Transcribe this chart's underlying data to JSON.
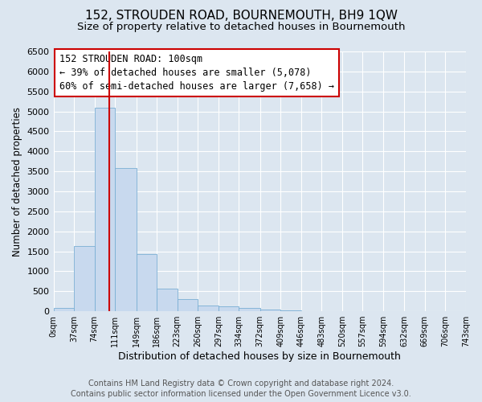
{
  "title": "152, STROUDEN ROAD, BOURNEMOUTH, BH9 1QW",
  "subtitle": "Size of property relative to detached houses in Bournemouth",
  "xlabel": "Distribution of detached houses by size in Bournemouth",
  "ylabel": "Number of detached properties",
  "bin_edges": [
    0,
    37,
    74,
    111,
    149,
    186,
    223,
    260,
    297,
    334,
    372,
    409,
    446,
    483,
    520,
    557,
    594,
    632,
    669,
    706,
    743
  ],
  "bar_heights": [
    75,
    1625,
    5100,
    3575,
    1425,
    575,
    300,
    150,
    125,
    75,
    50,
    25,
    10,
    5,
    3,
    2,
    1,
    1,
    0,
    0
  ],
  "bar_color": "#c8d9ee",
  "bar_edgecolor": "#7aafd4",
  "vline_x": 100,
  "vline_color": "#cc0000",
  "ylim": [
    0,
    6500
  ],
  "xlim": [
    0,
    743
  ],
  "annotation_box_text": "152 STROUDEN ROAD: 100sqm\n← 39% of detached houses are smaller (5,078)\n60% of semi-detached houses are larger (7,658) →",
  "footer_line1": "Contains HM Land Registry data © Crown copyright and database right 2024.",
  "footer_line2": "Contains public sector information licensed under the Open Government Licence v3.0.",
  "bg_color": "#dce6f0",
  "plot_bg_color": "#dce6f0",
  "title_fontsize": 11,
  "subtitle_fontsize": 9.5,
  "xlabel_fontsize": 9,
  "ylabel_fontsize": 8.5,
  "footer_fontsize": 7,
  "annotation_fontsize": 8.5,
  "tick_labels": [
    "0sqm",
    "37sqm",
    "74sqm",
    "111sqm",
    "149sqm",
    "186sqm",
    "223sqm",
    "260sqm",
    "297sqm",
    "334sqm",
    "372sqm",
    "409sqm",
    "446sqm",
    "483sqm",
    "520sqm",
    "557sqm",
    "594sqm",
    "632sqm",
    "669sqm",
    "706sqm",
    "743sqm"
  ]
}
